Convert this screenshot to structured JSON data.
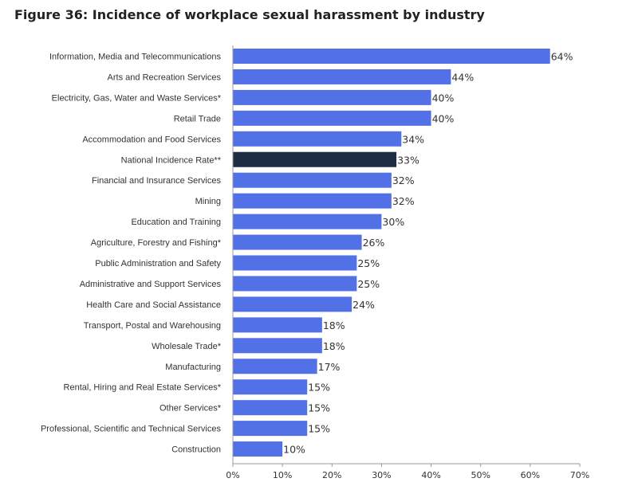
{
  "title": "Figure 36: Incidence of workplace sexual harassment by industry",
  "colors": {
    "bar": "#5271e6",
    "highlight": "#1f2d42",
    "axis": "#999999"
  },
  "chart_data": {
    "type": "bar",
    "orientation": "horizontal",
    "title": "Figure 36: Incidence of workplace sexual harassment by industry",
    "xlabel": "",
    "ylabel": "",
    "xlim": [
      0,
      70
    ],
    "x_ticks": [
      0,
      10,
      20,
      30,
      40,
      50,
      60,
      70
    ],
    "tick_suffix": "%",
    "grid": false,
    "highlight_category": "National Incidence Rate**",
    "categories": [
      "Information, Media and Telecommunications",
      "Arts and Recreation Services",
      "Electricity, Gas, Water and Waste Services*",
      "Retail Trade",
      "Accommodation and Food Services",
      "National Incidence Rate**",
      "Financial and Insurance Services",
      "Mining",
      "Education and Training",
      "Agriculture, Forestry and Fishing*",
      "Public Administration and Safety",
      "Administrative and Support Services",
      "Health Care and Social Assistance",
      "Transport, Postal and Warehousing",
      "Wholesale Trade*",
      "Manufacturing",
      "Rental, Hiring and Real Estate Services*",
      "Other Services*",
      "Professional, Scientific and Technical Services",
      "Construction"
    ],
    "values": [
      64,
      44,
      40,
      40,
      34,
      33,
      32,
      32,
      30,
      26,
      25,
      25,
      24,
      18,
      18,
      17,
      15,
      15,
      15,
      10
    ],
    "value_labels": [
      "64%",
      "44%",
      "40%",
      "40%",
      "34%",
      "33%",
      "32%",
      "32%",
      "30%",
      "26%",
      "25%",
      "25%",
      "24%",
      "18%",
      "18%",
      "17%",
      "15%",
      "15%",
      "15%",
      "10%"
    ]
  }
}
